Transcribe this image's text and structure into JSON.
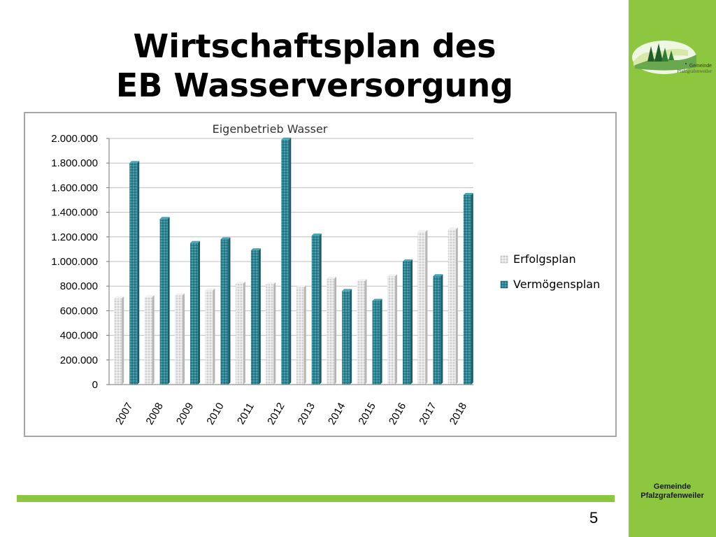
{
  "slide": {
    "title_line1": "Wirtschaftsplan des",
    "title_line2": "EB Wasserversorgung",
    "page_number": "5",
    "sidebar_text_line1": "Gemeinde",
    "sidebar_text_line2": "Pfalzgrafenweiler",
    "logo_text_line1": "Gemeinde",
    "logo_text_line2": "Pfalzgrafenweiler"
  },
  "colors": {
    "accent_green": "#8dc63f",
    "series_erfolgsplan": "#dcdcdc",
    "series_vermoegensplan": "#2a7f8e"
  },
  "chart_data": {
    "type": "bar",
    "title": "Eigenbetrieb Wasser",
    "categories": [
      "2007",
      "2008",
      "2009",
      "2010",
      "2011",
      "2012",
      "2013",
      "2014",
      "2015",
      "2016",
      "2017",
      "2018"
    ],
    "series": [
      {
        "name": "Erfolgsplan",
        "values": [
          700000,
          710000,
          725000,
          765000,
          820000,
          815000,
          790000,
          860000,
          840000,
          880000,
          1240000,
          1260000
        ]
      },
      {
        "name": "Vermögensplan",
        "values": [
          1800000,
          1345000,
          1150000,
          1180000,
          1090000,
          1990000,
          1210000,
          760000,
          680000,
          1000000,
          880000,
          1540000
        ]
      }
    ],
    "ylim": [
      0,
      2000000
    ],
    "yticks": [
      "0",
      "200.000",
      "400.000",
      "600.000",
      "800.000",
      "1.000.000",
      "1.200.000",
      "1.400.000",
      "1.600.000",
      "1.800.000",
      "2.000.000"
    ],
    "grid": true,
    "legend_position": "right"
  }
}
